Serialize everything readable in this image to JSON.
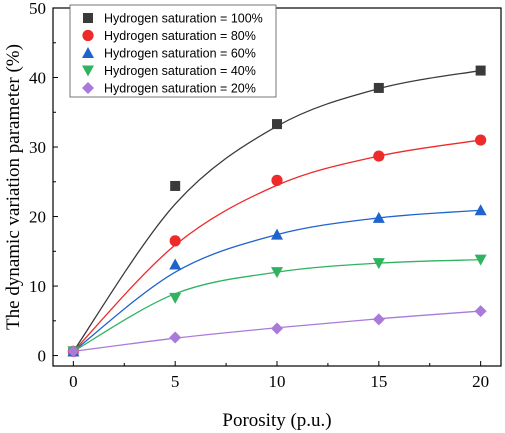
{
  "chart_data": {
    "type": "scatter",
    "xlabel": "Porosity (p.u.)",
    "ylabel": "The dynamic variation parameter (%)",
    "xlim": [
      -1,
      21
    ],
    "ylim": [
      -1.5,
      50
    ],
    "xticks": [
      0,
      5,
      10,
      15,
      20
    ],
    "yticks": [
      0,
      10,
      20,
      30,
      40,
      50
    ],
    "x_tick_labels": [
      "0",
      "5",
      "10",
      "15",
      "20"
    ],
    "y_tick_labels": [
      "0",
      "10",
      "20",
      "30",
      "40",
      "50"
    ],
    "grid": false,
    "legend_position": "top-left",
    "fit_lines": "smooth curve through each series",
    "series": [
      {
        "name": "Hydrogen saturation = 100%",
        "marker": "square",
        "marker_color": "#3a3a3a",
        "line_color": "#3a3a3a",
        "x": [
          0,
          5,
          10,
          15,
          20
        ],
        "values": [
          0.6,
          24.4,
          33.3,
          38.5,
          41.0
        ],
        "fit_values": [
          0.6,
          21.8,
          33.0,
          38.4,
          41.0
        ]
      },
      {
        "name": "Hydrogen saturation = 80%",
        "marker": "circle",
        "marker_color": "#ee2a2a",
        "line_color": "#ee2a2a",
        "x": [
          0,
          5,
          10,
          15,
          20
        ],
        "values": [
          0.6,
          16.5,
          25.2,
          28.7,
          31.0
        ],
        "fit_values": [
          0.6,
          15.9,
          24.5,
          28.7,
          31.0
        ]
      },
      {
        "name": "Hydrogen saturation = 60%",
        "marker": "triangle-up",
        "marker_color": "#1f63cc",
        "line_color": "#1f63cc",
        "x": [
          0,
          5,
          10,
          15,
          20
        ],
        "values": [
          0.6,
          13.1,
          17.4,
          19.8,
          20.9
        ],
        "fit_values": [
          0.6,
          12.0,
          17.4,
          19.8,
          20.9
        ]
      },
      {
        "name": "Hydrogen saturation = 40%",
        "marker": "triangle-down",
        "marker_color": "#2fb35f",
        "line_color": "#2fb35f",
        "x": [
          0,
          5,
          10,
          15,
          20
        ],
        "values": [
          0.6,
          8.3,
          12.0,
          13.3,
          13.8
        ],
        "fit_values": [
          0.6,
          8.9,
          12.0,
          13.3,
          13.8
        ]
      },
      {
        "name": "Hydrogen saturation = 20%",
        "marker": "diamond",
        "marker_color": "#a97ad9",
        "line_color": "#a97ad9",
        "x": [
          0,
          5,
          10,
          15,
          20
        ],
        "values": [
          0.6,
          2.6,
          3.9,
          5.2,
          6.4
        ],
        "fit_values": [
          0.6,
          2.5,
          4.0,
          5.3,
          6.4
        ]
      }
    ]
  }
}
